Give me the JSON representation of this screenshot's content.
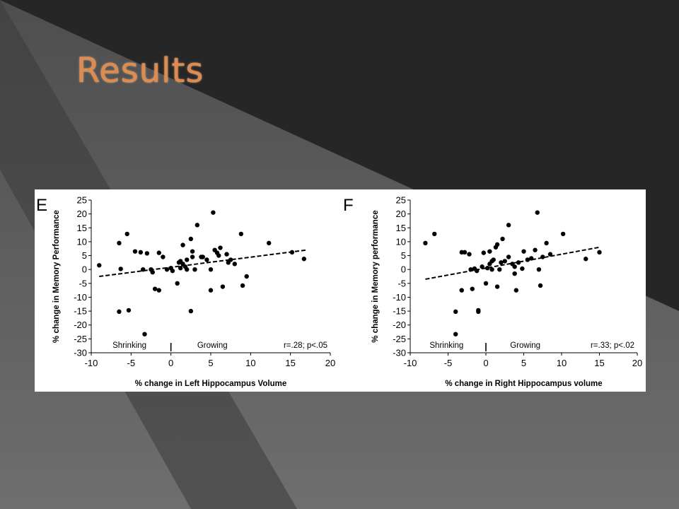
{
  "slide": {
    "title": "Results",
    "colors": {
      "title": "#e08a4e",
      "background_dark": "#262626",
      "background_light": "#6a6a6a"
    }
  },
  "chart_data": [
    {
      "type": "scatter",
      "panel_label": "E",
      "xlabel": "% change in Left Hippocampus Volume",
      "ylabel": "% change in Memory Performance",
      "xlim": [
        -10,
        20
      ],
      "ylim": [
        -30,
        25
      ],
      "xticks": [
        -10,
        -5,
        0,
        5,
        10,
        15,
        20
      ],
      "yticks": [
        25,
        20,
        15,
        10,
        5,
        0,
        -5,
        -10,
        -15,
        -20,
        -25,
        -30
      ],
      "annotations": {
        "left": "Shrinking",
        "right": "Growing",
        "stats": "r=.28; p<.05"
      },
      "trendline": {
        "x": [
          -9,
          17
        ],
        "y": [
          -2.5,
          7
        ]
      },
      "points": [
        [
          -9,
          1.5
        ],
        [
          -6.5,
          9.5
        ],
        [
          -6.3,
          0.2
        ],
        [
          -6.5,
          -15.2
        ],
        [
          -5.5,
          12.8
        ],
        [
          -5.3,
          -14.7
        ],
        [
          -4.5,
          6.5
        ],
        [
          -3.8,
          6.2
        ],
        [
          -3.5,
          0
        ],
        [
          -3.3,
          -23.3
        ],
        [
          -3,
          5.8
        ],
        [
          -2.5,
          0
        ],
        [
          -2.3,
          -1
        ],
        [
          -2,
          -7
        ],
        [
          -1.5,
          6
        ],
        [
          -1.5,
          -7.5
        ],
        [
          -1,
          4.5
        ],
        [
          -0.5,
          0
        ],
        [
          0,
          0.5
        ],
        [
          0.2,
          -0.5
        ],
        [
          0.8,
          -5
        ],
        [
          1,
          2.5
        ],
        [
          1.2,
          0.5
        ],
        [
          1.2,
          3
        ],
        [
          1.5,
          8.8
        ],
        [
          1.5,
          2
        ],
        [
          1.8,
          1
        ],
        [
          2,
          3.5
        ],
        [
          2,
          0
        ],
        [
          2.5,
          11
        ],
        [
          2.5,
          -15
        ],
        [
          2.7,
          6.5
        ],
        [
          2.7,
          4.5
        ],
        [
          3,
          0
        ],
        [
          3.3,
          16
        ],
        [
          3.8,
          4.5
        ],
        [
          4,
          4.5
        ],
        [
          4.5,
          3.5
        ],
        [
          5,
          0
        ],
        [
          5,
          -7.5
        ],
        [
          5.3,
          20.5
        ],
        [
          5.5,
          7
        ],
        [
          5.8,
          6
        ],
        [
          6,
          5
        ],
        [
          6.2,
          7.8
        ],
        [
          6.5,
          -6.2
        ],
        [
          7,
          5.5
        ],
        [
          7.2,
          2.5
        ],
        [
          7.5,
          3.5
        ],
        [
          8,
          2
        ],
        [
          8.8,
          12.8
        ],
        [
          9,
          -5.8
        ],
        [
          9.5,
          -2.5
        ],
        [
          12.3,
          9.5
        ],
        [
          15.2,
          6.2
        ],
        [
          16.7,
          3.8
        ]
      ]
    },
    {
      "type": "scatter",
      "panel_label": "F",
      "xlabel": "% change in Right Hippocampus volume",
      "ylabel": "% change in Memory performance",
      "xlim": [
        -10,
        20
      ],
      "ylim": [
        -30,
        25
      ],
      "xticks": [
        -10,
        -5,
        0,
        5,
        10,
        15,
        20
      ],
      "yticks": [
        25,
        20,
        15,
        10,
        5,
        0,
        -5,
        -10,
        -15,
        -20,
        -25,
        -30
      ],
      "annotations": {
        "left": "Shrinking",
        "right": "Growing",
        "stats": "r=.33; p<.02"
      },
      "trendline": {
        "x": [
          -8,
          15
        ],
        "y": [
          -3.5,
          8
        ]
      },
      "points": [
        [
          -8,
          9.5
        ],
        [
          -6.8,
          12.8
        ],
        [
          -4,
          -15.2
        ],
        [
          -4,
          -23.3
        ],
        [
          -3.2,
          6.2
        ],
        [
          -3.2,
          -7.5
        ],
        [
          -2.8,
          6.2
        ],
        [
          -2.2,
          5.5
        ],
        [
          -2,
          0
        ],
        [
          -1.8,
          -7
        ],
        [
          -1.5,
          0.3
        ],
        [
          -1.2,
          -0.5
        ],
        [
          -1,
          -14.7
        ],
        [
          -1,
          -15.2
        ],
        [
          -0.5,
          1
        ],
        [
          -0.3,
          6
        ],
        [
          0,
          -5
        ],
        [
          0.2,
          0.5
        ],
        [
          0.5,
          2
        ],
        [
          0.5,
          6.5
        ],
        [
          0.8,
          0
        ],
        [
          0.8,
          3
        ],
        [
          1,
          3.5
        ],
        [
          1.3,
          8
        ],
        [
          1.5,
          9
        ],
        [
          1.5,
          -6.2
        ],
        [
          1.8,
          0
        ],
        [
          2,
          2.5
        ],
        [
          2.2,
          11
        ],
        [
          2.5,
          3
        ],
        [
          3,
          16
        ],
        [
          3,
          4.5
        ],
        [
          3.5,
          2
        ],
        [
          3.8,
          -1.5
        ],
        [
          3.8,
          1
        ],
        [
          4,
          -7.5
        ],
        [
          4.3,
          2.5
        ],
        [
          4.8,
          0.3
        ],
        [
          5,
          6.5
        ],
        [
          5.5,
          3.5
        ],
        [
          6,
          4
        ],
        [
          6.5,
          7
        ],
        [
          6.8,
          20.5
        ],
        [
          7,
          0
        ],
        [
          7.2,
          -5.8
        ],
        [
          7.5,
          4.5
        ],
        [
          8,
          9.5
        ],
        [
          8.5,
          5.5
        ],
        [
          10.2,
          12.8
        ],
        [
          13.2,
          3.8
        ],
        [
          15,
          6.2
        ]
      ]
    }
  ]
}
